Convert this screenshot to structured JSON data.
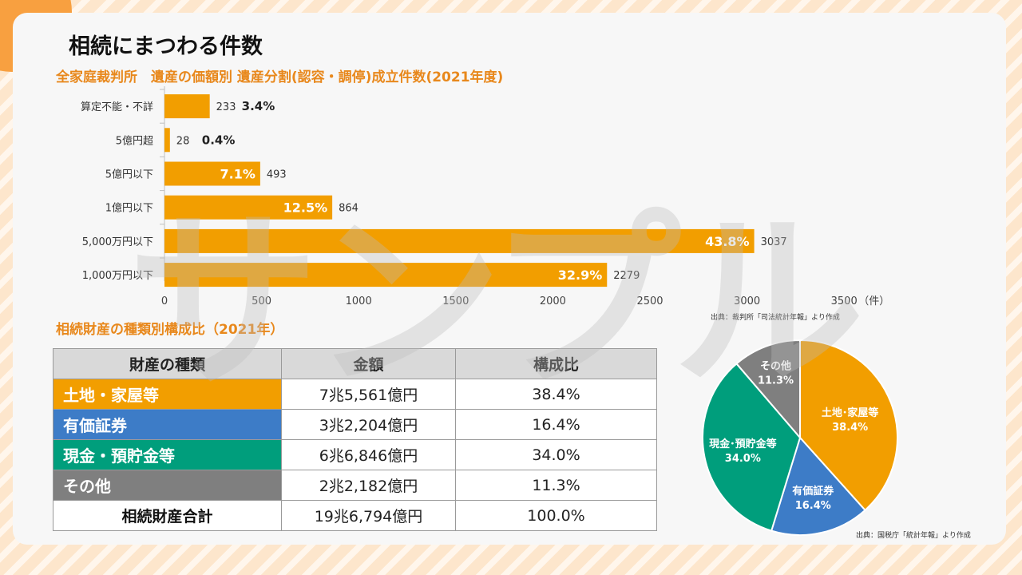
{
  "title": "相続にまつわる件数",
  "watermark": "サンプル",
  "colors": {
    "orange": "#f29e00",
    "blue": "#3d7cc7",
    "green": "#009e7c",
    "gray": "#7f7f7f"
  },
  "bar_section": {
    "subtitle": "全家庭裁判所　遺産の価額別 遺産分割(認容・調停)成立件数(2021年度)",
    "source": "出典：裁判所「司法統計年報」より作成"
  },
  "table_section": {
    "subtitle": "相続財産の種類別構成比（2021年）",
    "headers": [
      "財産の種類",
      "金額",
      "構成比"
    ],
    "rows": [
      {
        "name": "土地・家屋等",
        "amount": "7兆5,561億円",
        "ratio": "38.4%",
        "color": "#f29e00"
      },
      {
        "name": "有価証券",
        "amount": "3兆2,204億円",
        "ratio": "16.4%",
        "color": "#3d7cc7"
      },
      {
        "name": "現金・預貯金等",
        "amount": "6兆6,846億円",
        "ratio": "34.0%",
        "color": "#009e7c"
      },
      {
        "name": "その他",
        "amount": "2兆2,182億円",
        "ratio": "11.3%",
        "color": "#7f7f7f"
      }
    ],
    "total": {
      "name": "相続財産合計",
      "amount": "19兆6,794億円",
      "ratio": "100.0%"
    }
  },
  "pie_section": {
    "source": "出典：国税庁「統計年報」より作成"
  },
  "chart_data": [
    {
      "type": "bar",
      "orientation": "horizontal",
      "categories": [
        "算定不能・不詳",
        "5億円超",
        "5億円以下",
        "1億円以下",
        "5,000万円以下",
        "1,000万円以下"
      ],
      "values": [
        233,
        28,
        493,
        864,
        3037,
        2279
      ],
      "value_labels": [
        "233",
        "28",
        "493",
        "864",
        "3037",
        "2279"
      ],
      "percent_labels": [
        "3.4%",
        "0.4%",
        "7.1%",
        "12.5%",
        "43.8%",
        "32.9%"
      ],
      "x_ticks": [
        "0",
        "500",
        "1000",
        "1500",
        "2000",
        "2500",
        "3000",
        "3500"
      ],
      "xlim": [
        0,
        3500
      ],
      "x_unit": "（件）",
      "color": "#f29e00"
    },
    {
      "type": "pie",
      "slices": [
        {
          "label": "土地･家屋等",
          "pct_label": "38.4%",
          "value": 38.4,
          "color": "#f29e00"
        },
        {
          "label": "有価証券",
          "pct_label": "16.4%",
          "value": 16.4,
          "color": "#3d7cc7"
        },
        {
          "label": "現金･預貯金等",
          "pct_label": "34.0%",
          "value": 34.0,
          "color": "#009e7c"
        },
        {
          "label": "その他",
          "pct_label": "11.3%",
          "value": 11.3,
          "color": "#7f7f7f"
        }
      ]
    }
  ]
}
